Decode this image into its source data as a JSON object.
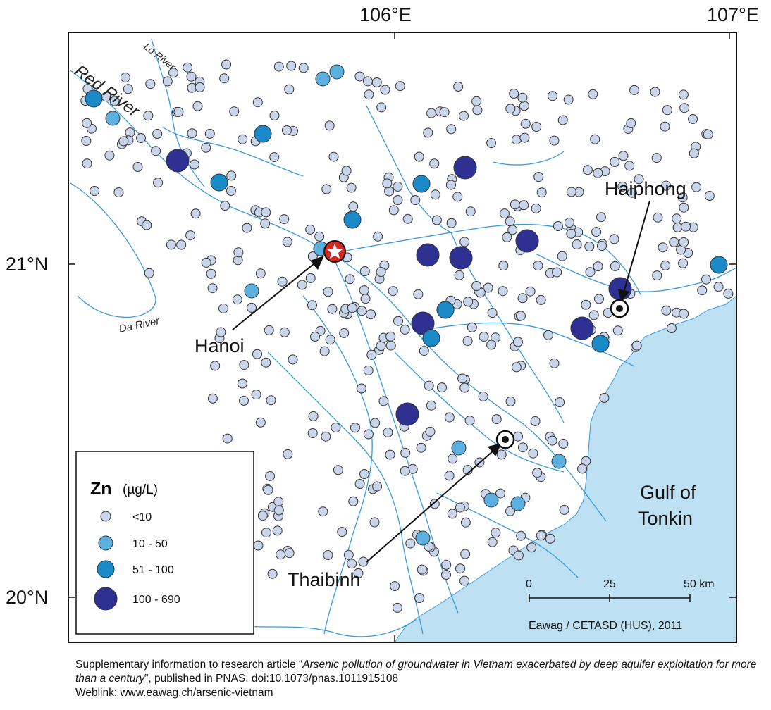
{
  "axes": {
    "lon_labels": [
      "106°E",
      "107°E"
    ],
    "lat_labels": [
      "21°N",
      "20°N"
    ]
  },
  "rivers": {
    "red": "Red River",
    "lo": "Lo River",
    "da": "Da River"
  },
  "cities": {
    "hanoi": "Hanoi",
    "haiphong": "Haiphong",
    "thaibinh": "Thaibinh"
  },
  "sea": {
    "line1": "Gulf of",
    "line2": "Tonkin"
  },
  "legend": {
    "element": "Zn",
    "unit": "(µg/L)",
    "classes": [
      {
        "label": "<10",
        "color": "#c8d5ea"
      },
      {
        "label": "10 - 50",
        "color": "#5bb0e0"
      },
      {
        "label": "51 - 100",
        "color": "#1a8ac8"
      },
      {
        "label": "100 - 690",
        "color": "#2e3192"
      }
    ]
  },
  "scalebar": {
    "ticks": [
      "0",
      "25",
      "50 km"
    ]
  },
  "credit": "Eawag / CETASD (HUS), 2011",
  "caption": {
    "prefix": "Supplementary information to research article “",
    "title": "Arsenic pollution of groundwater in Vietnam exacerbated by deep aquifer exploitation for more than a century",
    "suffix": "”, published in PNAS. doi:10.1073/pnas.1011915108",
    "weblink": "Weblink: www.eawag.ch/arsenic-vietnam"
  },
  "colors": {
    "river": "#3a9ad9",
    "sea": "#bde0f3",
    "star": "#d7261e"
  }
}
